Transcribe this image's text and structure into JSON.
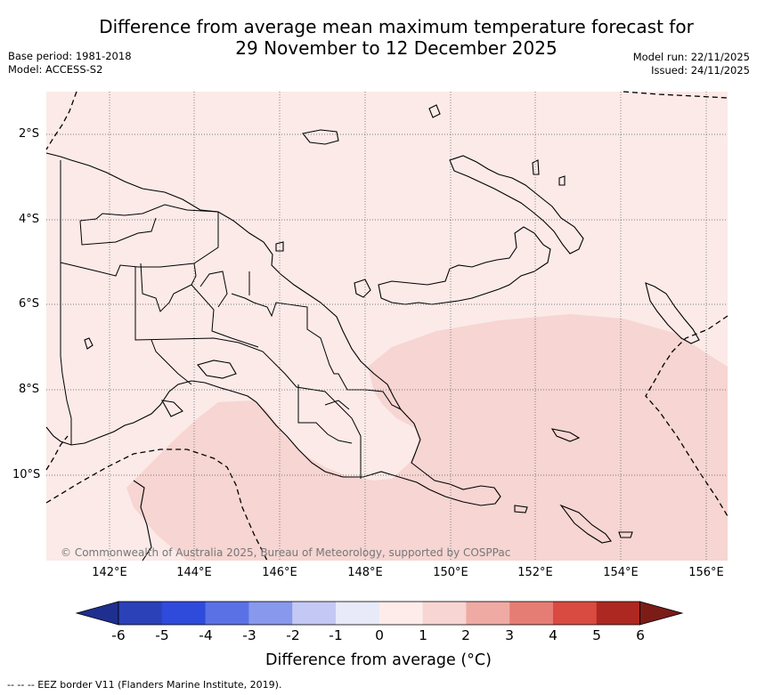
{
  "header": {
    "title_line1": "Difference from average mean maximum temperature forecast for",
    "title_line2": "29 November to 12 December 2025",
    "base_period": "Base period: 1981-2018",
    "model": "Model: ACCESS-S2",
    "model_run": "Model run: 22/11/2025",
    "issued": "Issued: 24/11/2025"
  },
  "map": {
    "region": "Papua New Guinea",
    "lon_range": [
      140.5,
      156.5
    ],
    "lat_range": [
      -12.0,
      -1.0
    ],
    "lon_ticks": [
      142,
      144,
      146,
      148,
      150,
      152,
      154,
      156
    ],
    "lat_ticks": [
      -2,
      -4,
      -6,
      -8,
      -10
    ],
    "x_tick_labels": [
      "142°E",
      "144°E",
      "146°E",
      "148°E",
      "150°E",
      "152°E",
      "154°E",
      "156°E"
    ],
    "y_tick_labels": [
      "2°S",
      "4°S",
      "6°S",
      "8°S",
      "10°S"
    ],
    "background_category": "0 to 1",
    "background_color": "#fbeae8",
    "warm_region_category": "1 to 2",
    "warm_region_color": "#f6d5d2",
    "copyright": "© Commonwealth of Australia 2025, Bureau of Meteorology, supported by COSPPac"
  },
  "colorbar": {
    "title": "Difference from average (°C)",
    "tick_labels": [
      "-6",
      "-5",
      "-4",
      "-3",
      "-2",
      "-1",
      "0",
      "1",
      "2",
      "3",
      "4",
      "5",
      "6"
    ],
    "colors": [
      "#1e2f8f",
      "#2a41b8",
      "#2f4bdc",
      "#5a71e6",
      "#8898ec",
      "#c3c9f4",
      "#e8eaf9",
      "#fdecea",
      "#f6d5d2",
      "#efaaa3",
      "#e67d75",
      "#d94a40",
      "#ad2821",
      "#7c1c17"
    ]
  },
  "footnote": "-- -- -- EEZ border V11 (Flanders Marine Institute, 2019)."
}
